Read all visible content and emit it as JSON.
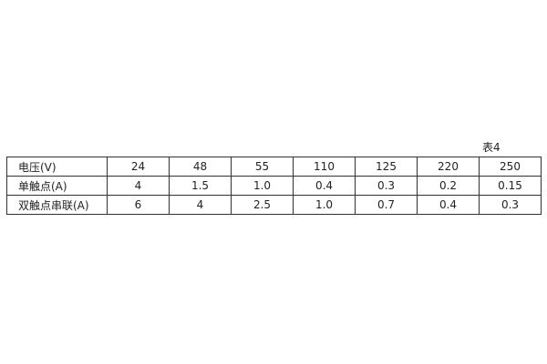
{
  "caption": "表4",
  "table": {
    "rows": [
      [
        "电压(V)",
        "24",
        "48",
        "55",
        "110",
        "125",
        "220",
        "250"
      ],
      [
        "单触点(A)",
        "4",
        "1.5",
        "1.0",
        "0.4",
        "0.3",
        "0.2",
        "0.15"
      ],
      [
        "双触点串联(A)",
        "6",
        "4",
        "2.5",
        "1.0",
        "0.7",
        "0.4",
        "0.3"
      ]
    ]
  }
}
